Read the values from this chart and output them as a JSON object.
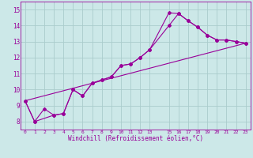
{
  "background_color": "#cce8e8",
  "line_color": "#990099",
  "grid_color": "#aacccc",
  "xlabel": "Windchill (Refroidissement éolien,°C)",
  "xlim": [
    -0.5,
    23.5
  ],
  "ylim": [
    7.5,
    15.5
  ],
  "yticks": [
    8,
    9,
    10,
    11,
    12,
    13,
    14,
    15
  ],
  "xtick_positions": [
    0,
    1,
    2,
    3,
    4,
    5,
    6,
    7,
    8,
    9,
    10,
    11,
    12,
    13,
    15,
    16,
    17,
    18,
    19,
    20,
    21,
    22,
    23
  ],
  "xtick_labels": [
    "0",
    "1",
    "2",
    "3",
    "4",
    "5",
    "6",
    "7",
    "8",
    "9",
    "10",
    "11",
    "12",
    "13",
    "15",
    "16",
    "17",
    "18",
    "19",
    "20",
    "21",
    "22",
    "23"
  ],
  "line1_x": [
    0,
    1,
    2,
    3,
    4,
    5,
    6,
    7,
    8,
    9,
    10,
    11,
    12,
    13,
    15,
    16,
    17,
    18,
    19,
    20,
    21,
    22,
    23
  ],
  "line1_y": [
    9.3,
    8.0,
    8.8,
    8.4,
    8.5,
    10.0,
    9.6,
    10.4,
    10.6,
    10.8,
    11.5,
    11.6,
    12.0,
    12.5,
    14.0,
    14.75,
    14.3,
    13.9,
    13.4,
    13.1,
    13.1,
    13.0,
    12.9
  ],
  "line2_x": [
    0,
    1,
    3,
    4,
    5,
    6,
    7,
    8,
    9,
    10,
    11,
    12,
    13,
    15,
    16,
    17,
    18,
    19,
    20,
    21,
    22,
    23
  ],
  "line2_y": [
    9.3,
    8.0,
    8.4,
    8.5,
    10.0,
    9.6,
    10.4,
    10.6,
    10.8,
    11.5,
    11.6,
    12.0,
    12.5,
    14.8,
    14.75,
    14.3,
    13.9,
    13.4,
    13.1,
    13.1,
    13.0,
    12.9
  ],
  "line3_x": [
    0,
    23
  ],
  "line3_y": [
    9.3,
    12.9
  ]
}
